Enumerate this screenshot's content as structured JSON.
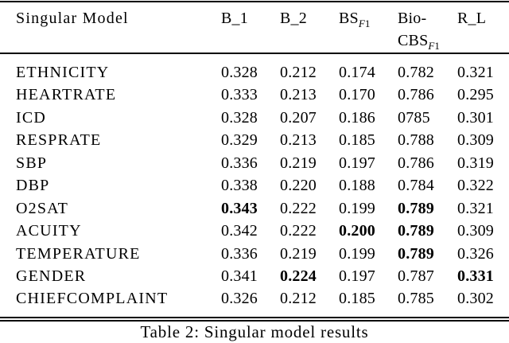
{
  "table": {
    "caption": "Table 2: Singular model results",
    "header": {
      "model_col": "Singular Model",
      "columns": [
        {
          "text": "B_1"
        },
        {
          "text": "B_2"
        },
        {
          "text": "BS",
          "sub": "F1"
        },
        {
          "text": "Bio-",
          "line2": "CBS",
          "line2_sub": "F1"
        },
        {
          "text": "R_L"
        }
      ]
    },
    "rows": [
      {
        "model": "ETHNICITY",
        "cells": [
          {
            "v": "0.328"
          },
          {
            "v": "0.212"
          },
          {
            "v": "0.174"
          },
          {
            "v": "0.782"
          },
          {
            "v": "0.321"
          }
        ]
      },
      {
        "model": "HEARTRATE",
        "cells": [
          {
            "v": "0.333"
          },
          {
            "v": "0.213"
          },
          {
            "v": "0.170"
          },
          {
            "v": "0.786"
          },
          {
            "v": "0.295"
          }
        ]
      },
      {
        "model": "ICD",
        "cells": [
          {
            "v": "0.328"
          },
          {
            "v": "0.207"
          },
          {
            "v": "0.186"
          },
          {
            "v": "0785"
          },
          {
            "v": "0.301"
          }
        ]
      },
      {
        "model": "RESPRATE",
        "cells": [
          {
            "v": "0.329"
          },
          {
            "v": "0.213"
          },
          {
            "v": "0.185"
          },
          {
            "v": "0.788"
          },
          {
            "v": "0.309"
          }
        ]
      },
      {
        "model": "SBP",
        "cells": [
          {
            "v": "0.336"
          },
          {
            "v": "0.219"
          },
          {
            "v": "0.197"
          },
          {
            "v": "0.786"
          },
          {
            "v": "0.319"
          }
        ]
      },
      {
        "model": "DBP",
        "cells": [
          {
            "v": "0.338"
          },
          {
            "v": "0.220"
          },
          {
            "v": "0.188"
          },
          {
            "v": "0.784"
          },
          {
            "v": "0.322"
          }
        ]
      },
      {
        "model": "O2SAT",
        "cells": [
          {
            "v": "0.343",
            "b": true
          },
          {
            "v": "0.222"
          },
          {
            "v": "0.199"
          },
          {
            "v": "0.789",
            "b": true
          },
          {
            "v": "0.321"
          }
        ]
      },
      {
        "model": "ACUITY",
        "cells": [
          {
            "v": "0.342"
          },
          {
            "v": "0.222"
          },
          {
            "v": "0.200",
            "b": true
          },
          {
            "v": "0.789",
            "b": true
          },
          {
            "v": "0.309"
          }
        ]
      },
      {
        "model": "TEMPERATURE",
        "cells": [
          {
            "v": "0.336"
          },
          {
            "v": "0.219"
          },
          {
            "v": "0.199"
          },
          {
            "v": "0.789",
            "b": true
          },
          {
            "v": "0.326"
          }
        ]
      },
      {
        "model": "GENDER",
        "cells": [
          {
            "v": "0.341"
          },
          {
            "v": "0.224",
            "b": true
          },
          {
            "v": "0.197"
          },
          {
            "v": "0.787"
          },
          {
            "v": "0.331",
            "b": true
          }
        ]
      },
      {
        "model": "CHIEFCOMPLAINT",
        "cells": [
          {
            "v": "0.326"
          },
          {
            "v": "0.212"
          },
          {
            "v": "0.185"
          },
          {
            "v": "0.785"
          },
          {
            "v": "0.302"
          }
        ]
      }
    ]
  }
}
